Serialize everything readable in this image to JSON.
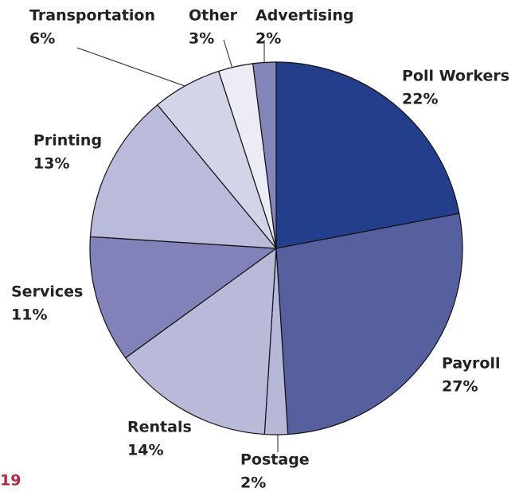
{
  "chart_data": {
    "type": "pie",
    "categories": [
      "Poll Workers",
      "Payroll",
      "Postage",
      "Rentals",
      "Services",
      "Printing",
      "Transportation",
      "Other",
      "Advertising"
    ],
    "values": [
      22,
      27,
      2,
      14,
      11,
      13,
      6,
      3,
      2
    ],
    "value_labels": [
      "22%",
      "27%",
      "2%",
      "14%",
      "11%",
      "13%",
      "6%",
      "3%",
      "2%"
    ],
    "colors": [
      "#233f8c",
      "#57609f",
      "#b7b8d8",
      "#b9b9d9",
      "#8182b9",
      "#babada",
      "#d3d4e7",
      "#ececf4",
      "#8485ba"
    ]
  },
  "page_number": "19"
}
